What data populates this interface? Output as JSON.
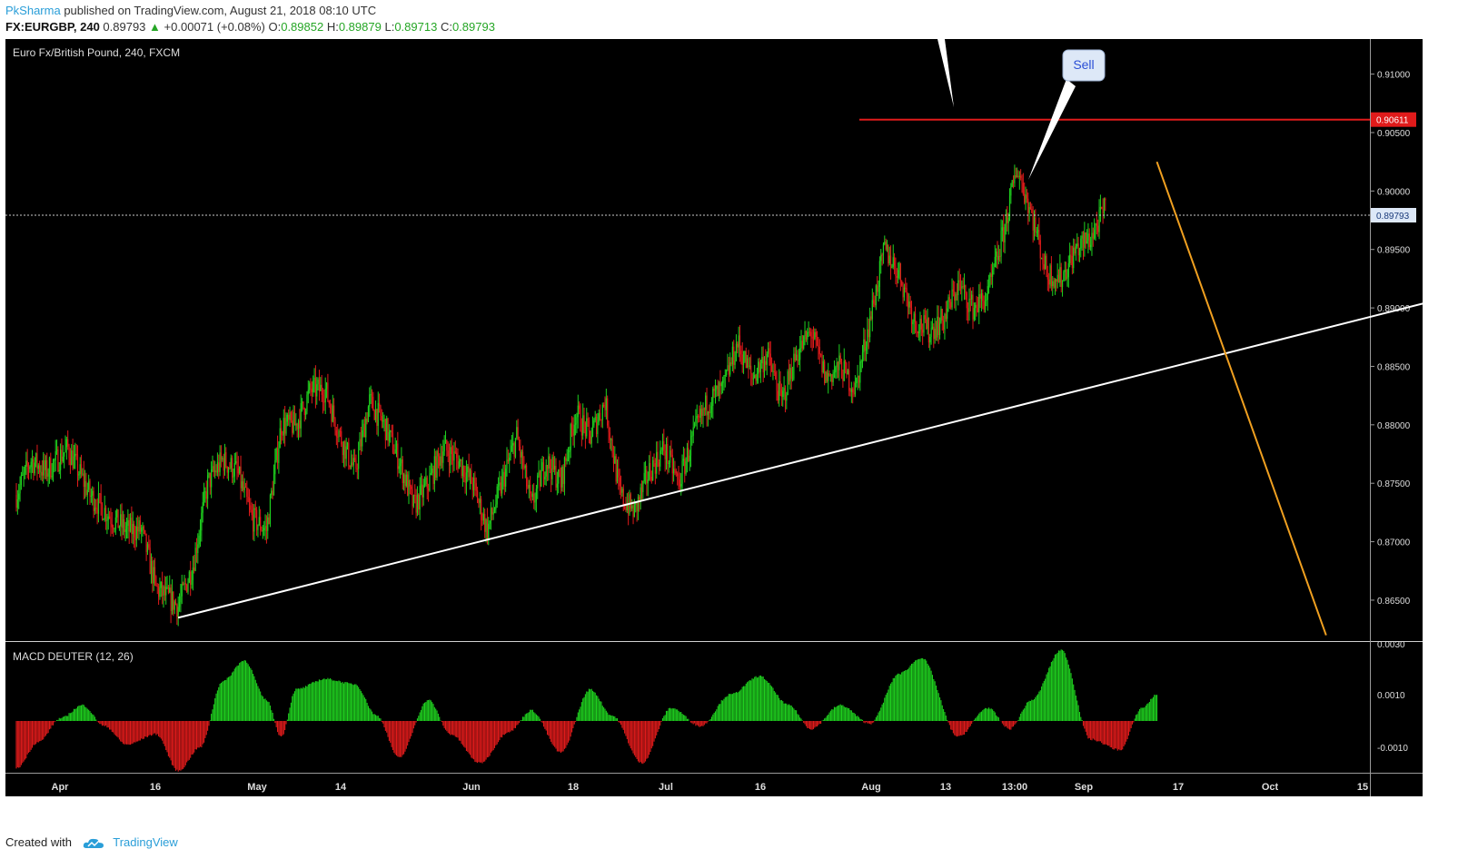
{
  "header": {
    "user": "PkSharma",
    "published": "published on TradingView.com, August 21, 2018 08:10 UTC",
    "symbol": "FX:EURGBP, 240",
    "last": "0.89793",
    "change_arrow": "▲",
    "change": "+0.00071 (+0.08%)",
    "o_label": "O:",
    "o_value": "0.89852",
    "h_label": "H:",
    "h_value": "0.89879",
    "l_label": "L:",
    "l_value": "0.89713",
    "c_label": "C:",
    "c_value": "0.89793"
  },
  "footer": {
    "created_with": "Created with",
    "brand": "TradingView",
    "logo_icon": "tradingview-cloud-icon"
  },
  "colors": {
    "background": "#000000",
    "up": "#1fd11f",
    "down": "#e01b1b",
    "resistance": "#e01b1b",
    "trendline": "#ffffff",
    "projection": "#f0a020",
    "label_bg": "#dde8f7"
  },
  "chart_data": [
    {
      "type": "candlestick",
      "title": "Euro Fx/British Pound, 240, FXCM",
      "ylim": [
        0.8615,
        0.913
      ],
      "y_ticks": [
        "0.91000",
        "0.90500",
        "0.90000",
        "0.89500",
        "0.89000",
        "0.88500",
        "0.88000",
        "0.87500",
        "0.87000",
        "0.86500"
      ],
      "x_ticks": [
        "Apr",
        "16",
        "May",
        "14",
        "Jun",
        "18",
        "Jul",
        "16",
        "Aug",
        "13",
        "13:00",
        "Sep",
        "17",
        "Oct",
        "15"
      ],
      "last_price": "0.89793",
      "resistance_label": "0.90611",
      "resistance": 0.90611,
      "annotation": "Sell",
      "price_path": [
        [
          "2018-03-26",
          0.874
        ],
        [
          "2018-03-28",
          0.877
        ],
        [
          "2018-03-30",
          0.876
        ],
        [
          "2018-04-02",
          0.878
        ],
        [
          "2018-04-05",
          0.874
        ],
        [
          "2018-04-08",
          0.872
        ],
        [
          "2018-04-10",
          0.871
        ],
        [
          "2018-04-12",
          0.871
        ],
        [
          "2018-04-14",
          0.866
        ],
        [
          "2018-04-17",
          0.8645
        ],
        [
          "2018-04-19",
          0.868
        ],
        [
          "2018-04-21",
          0.875
        ],
        [
          "2018-04-23",
          0.877
        ],
        [
          "2018-04-25",
          0.876
        ],
        [
          "2018-04-27",
          0.872
        ],
        [
          "2018-04-29",
          0.871
        ],
        [
          "2018-05-01",
          0.88
        ],
        [
          "2018-05-03",
          0.88
        ],
        [
          "2018-05-05",
          0.883
        ],
        [
          "2018-05-07",
          0.883
        ],
        [
          "2018-05-09",
          0.879
        ],
        [
          "2018-05-11",
          0.876
        ],
        [
          "2018-05-13",
          0.882
        ],
        [
          "2018-05-15",
          0.88
        ],
        [
          "2018-05-17",
          0.877
        ],
        [
          "2018-05-19",
          0.873
        ],
        [
          "2018-05-21",
          0.875
        ],
        [
          "2018-05-23",
          0.878
        ],
        [
          "2018-05-25",
          0.877
        ],
        [
          "2018-05-27",
          0.875
        ],
        [
          "2018-05-29",
          0.871
        ],
        [
          "2018-05-31",
          0.875
        ],
        [
          "2018-06-02",
          0.879
        ],
        [
          "2018-06-04",
          0.873
        ],
        [
          "2018-06-06",
          0.877
        ],
        [
          "2018-06-08",
          0.875
        ],
        [
          "2018-06-10",
          0.881
        ],
        [
          "2018-06-12",
          0.879
        ],
        [
          "2018-06-14",
          0.882
        ],
        [
          "2018-06-16",
          0.874
        ],
        [
          "2018-06-18",
          0.8725
        ],
        [
          "2018-06-20",
          0.876
        ],
        [
          "2018-06-22",
          0.878
        ],
        [
          "2018-06-24",
          0.875
        ],
        [
          "2018-06-26",
          0.879
        ],
        [
          "2018-06-28",
          0.882
        ],
        [
          "2018-06-30",
          0.883
        ],
        [
          "2018-07-02",
          0.887
        ],
        [
          "2018-07-04",
          0.884
        ],
        [
          "2018-07-06",
          0.886
        ],
        [
          "2018-07-08",
          0.882
        ],
        [
          "2018-07-10",
          0.886
        ],
        [
          "2018-07-12",
          0.888
        ],
        [
          "2018-07-14",
          0.884
        ],
        [
          "2018-07-16",
          0.885
        ],
        [
          "2018-07-18",
          0.883
        ],
        [
          "2018-07-20",
          0.889
        ],
        [
          "2018-07-22",
          0.895
        ],
        [
          "2018-07-24",
          0.893
        ],
        [
          "2018-07-26",
          0.889
        ],
        [
          "2018-07-28",
          0.888
        ],
        [
          "2018-07-30",
          0.889
        ],
        [
          "2018-08-01",
          0.892
        ],
        [
          "2018-08-03",
          0.89
        ],
        [
          "2018-08-05",
          0.891
        ],
        [
          "2018-08-07",
          0.896
        ],
        [
          "2018-08-09",
          0.902
        ],
        [
          "2018-08-11",
          0.898
        ],
        [
          "2018-08-13",
          0.893
        ],
        [
          "2018-08-15",
          0.8925
        ],
        [
          "2018-08-17",
          0.895
        ],
        [
          "2018-08-19",
          0.896
        ],
        [
          "2018-08-21",
          0.8985
        ]
      ],
      "trendline": [
        [
          "2018-04-17",
          0.8635
        ],
        [
          "2018-10-09",
          0.8913
        ]
      ],
      "projection_line": [
        [
          "2018-08-28",
          0.9025
        ],
        [
          "2018-09-20",
          0.862
        ]
      ]
    },
    {
      "type": "histogram",
      "title": "MACD DEUTER (12, 26)",
      "ylim": [
        -0.002,
        0.003
      ],
      "y_ticks": [
        "0.0030",
        "0.0010",
        "-0.0010"
      ],
      "series_shape": [
        [
          "2018-03-26",
          -0.0018
        ],
        [
          "2018-03-29",
          -0.0008
        ],
        [
          "2018-04-01",
          0.0001
        ],
        [
          "2018-04-04",
          0.0006
        ],
        [
          "2018-04-07",
          -0.0002
        ],
        [
          "2018-04-10",
          -0.0009
        ],
        [
          "2018-04-14",
          -0.0005
        ],
        [
          "2018-04-17",
          -0.0019
        ],
        [
          "2018-04-20",
          -0.001
        ],
        [
          "2018-04-23",
          0.0015
        ],
        [
          "2018-04-26",
          0.0023
        ],
        [
          "2018-04-29",
          0.0008
        ],
        [
          "2018-05-01",
          -0.0006
        ],
        [
          "2018-05-03",
          0.0012
        ],
        [
          "2018-05-07",
          0.0016
        ],
        [
          "2018-05-11",
          0.0014
        ],
        [
          "2018-05-14",
          0.0002
        ],
        [
          "2018-05-17",
          -0.0014
        ],
        [
          "2018-05-21",
          0.0008
        ],
        [
          "2018-05-24",
          -0.0005
        ],
        [
          "2018-05-28",
          -0.0016
        ],
        [
          "2018-06-01",
          -0.0004
        ],
        [
          "2018-06-04",
          0.0004
        ],
        [
          "2018-06-08",
          -0.0012
        ],
        [
          "2018-06-12",
          0.0012
        ],
        [
          "2018-06-15",
          0.0002
        ],
        [
          "2018-06-19",
          -0.0016
        ],
        [
          "2018-06-23",
          0.0005
        ],
        [
          "2018-06-27",
          -0.0002
        ],
        [
          "2018-07-01",
          0.001
        ],
        [
          "2018-07-05",
          0.0017
        ],
        [
          "2018-07-09",
          0.0006
        ],
        [
          "2018-07-12",
          -0.0003
        ],
        [
          "2018-07-16",
          0.0006
        ],
        [
          "2018-07-20",
          -0.0001
        ],
        [
          "2018-07-24",
          0.0018
        ],
        [
          "2018-07-27",
          0.0024
        ],
        [
          "2018-08-01",
          -0.0006
        ],
        [
          "2018-08-05",
          0.0005
        ],
        [
          "2018-08-08",
          -0.0003
        ],
        [
          "2018-08-11",
          0.0008
        ],
        [
          "2018-08-15",
          0.0027
        ],
        [
          "2018-08-19",
          -0.0007
        ],
        [
          "2018-08-23",
          -0.0011
        ],
        [
          "2018-08-26",
          0.0005
        ],
        [
          "2018-08-28",
          0.001
        ]
      ]
    }
  ]
}
